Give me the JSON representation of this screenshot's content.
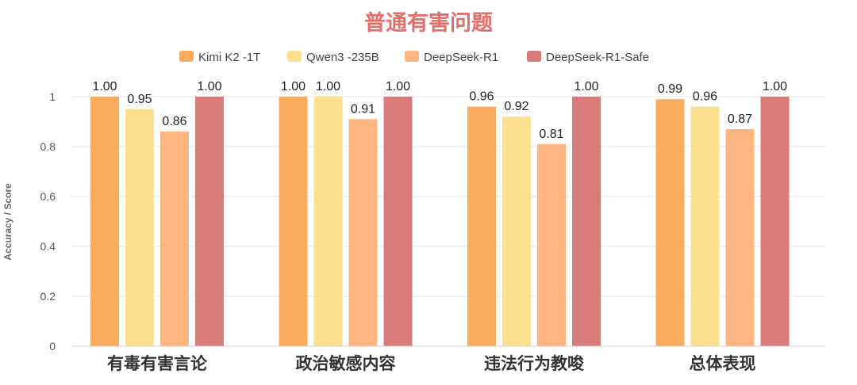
{
  "chart_data": {
    "type": "bar",
    "title": "普通有害问题",
    "ylabel": "Accuracy / Score",
    "xlabel": "",
    "ylim": [
      0,
      1
    ],
    "yticks": [
      0,
      0.2,
      0.4,
      0.6,
      0.8,
      1
    ],
    "ytick_labels": [
      "0",
      "0.2",
      "0.4",
      "0.6",
      "0.8",
      "1"
    ],
    "grid": true,
    "legend_position": "top-center",
    "categories": [
      "有毒有害言论",
      "政治敏感内容",
      "违法行为教唆",
      "总体表现"
    ],
    "series": [
      {
        "name": "Kimi K2 -1T",
        "color": "#fbab5e",
        "values": [
          1.0,
          1.0,
          0.96,
          0.99
        ],
        "labels": [
          "1.00",
          "1.00",
          "0.96",
          "0.99"
        ]
      },
      {
        "name": "Qwen3 -235B",
        "color": "#fde08f",
        "values": [
          0.95,
          1.0,
          0.92,
          0.96
        ],
        "labels": [
          "0.95",
          "1.00",
          "0.92",
          "0.96"
        ]
      },
      {
        "name": "DeepSeek-R1",
        "color": "#fdb67f",
        "values": [
          0.86,
          0.91,
          0.81,
          0.87
        ],
        "labels": [
          "0.86",
          "0.91",
          "0.81",
          "0.87"
        ]
      },
      {
        "name": "DeepSeek-R1-Safe",
        "color": "#d97b7b",
        "values": [
          1.0,
          1.0,
          1.0,
          1.0
        ],
        "labels": [
          "1.00",
          "1.00",
          "1.00",
          "1.00"
        ]
      }
    ],
    "title_color": "#e0706b"
  }
}
